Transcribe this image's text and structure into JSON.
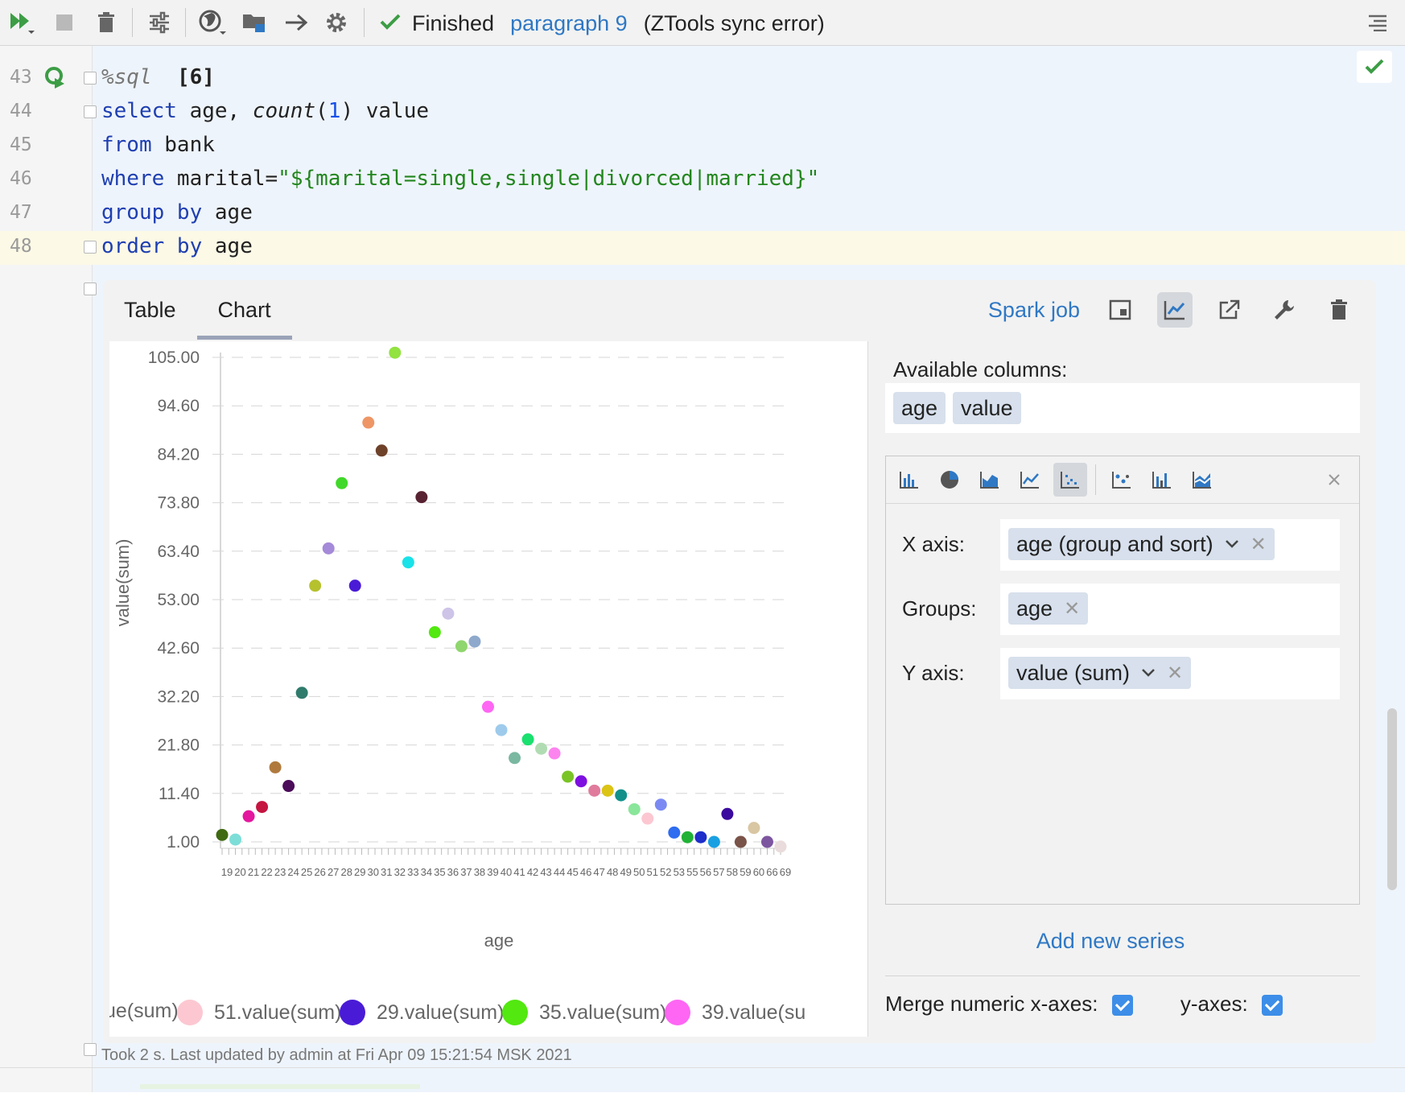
{
  "toolbar": {
    "status": "Finished",
    "paragraph": "paragraph 9",
    "error": "(ZTools sync error)"
  },
  "code": {
    "lines": [
      {
        "num": "43"
      },
      {
        "num": "44"
      },
      {
        "num": "45"
      },
      {
        "num": "46"
      },
      {
        "num": "47"
      },
      {
        "num": "48"
      }
    ],
    "l43_magic": "%sql",
    "l43_count": "[6]",
    "l44_select": "select",
    "l44_age": " age, ",
    "l44_count": "count",
    "l44_p1": "(",
    "l44_one": "1",
    "l44_p2": ") value",
    "l45_from": "from",
    "l45_rest": " bank",
    "l46_where": "where",
    "l46_mid": " marital=",
    "l46_str": "\"${marital=single,single|divorced|married}\"",
    "l47_kw": "group by",
    "l47_rest": " age",
    "l48_kw": "order by",
    "l48_rest": " age"
  },
  "result": {
    "tabs": {
      "table": "Table",
      "chart": "Chart"
    },
    "spark_job": "Spark job"
  },
  "chart_data": {
    "type": "scatter",
    "xlabel": "age",
    "ylabel": "value(sum)",
    "ylim": [
      1.0,
      105.0
    ],
    "yticks": [
      "105.00",
      "94.60",
      "84.20",
      "73.80",
      "63.40",
      "53.00",
      "42.60",
      "32.20",
      "21.80",
      "11.40",
      "1.00"
    ],
    "x": [
      19,
      20,
      21,
      22,
      23,
      24,
      25,
      26,
      27,
      28,
      29,
      30,
      31,
      32,
      33,
      34,
      35,
      36,
      37,
      38,
      39,
      40,
      41,
      42,
      43,
      44,
      45,
      46,
      47,
      48,
      49,
      50,
      51,
      52,
      53,
      55,
      56,
      57,
      58,
      59,
      60,
      66,
      69
    ],
    "x_tick_labels": [
      "19",
      "20",
      "21",
      "22",
      "23",
      "24",
      "25",
      "26",
      "27",
      "28",
      "29",
      "30",
      "31",
      "32",
      "33",
      "34",
      "35",
      "36",
      "37",
      "38",
      "39",
      "40",
      "41",
      "42",
      "43",
      "44",
      "45",
      "46",
      "47",
      "48",
      "49",
      "50",
      "51",
      "52",
      "53",
      "55",
      "56",
      "57",
      "58",
      "59",
      "60",
      "66",
      "69"
    ],
    "y": [
      2.5,
      1.5,
      6.5,
      8.5,
      17,
      13,
      33,
      56,
      64,
      78,
      56,
      91,
      85,
      106,
      61,
      75,
      46,
      50,
      43,
      44,
      30,
      25,
      19,
      23,
      21,
      20,
      15,
      14,
      12,
      12,
      11,
      8,
      6,
      9,
      3,
      2,
      2,
      1,
      7,
      1,
      4,
      1,
      0
    ],
    "colors": [
      "#3f6a12",
      "#7dded8",
      "#e4179f",
      "#c51541",
      "#b07a3e",
      "#4b0c59",
      "#2f7b6c",
      "#b6c12e",
      "#a48ad8",
      "#40d82a",
      "#4a1bd6",
      "#ee9666",
      "#6e4129",
      "#92e240",
      "#19e2e8",
      "#582232",
      "#52e810",
      "#cdc4e8",
      "#8fd66e",
      "#8ea9cc",
      "#fe66f3",
      "#9ecbec",
      "#7ab8a1",
      "#19e06e",
      "#b1dcb3",
      "#fc84ef",
      "#7ac426",
      "#7d10e0",
      "#e07b9c",
      "#dbc416",
      "#11918a",
      "#8ae69a",
      "#fcc7d1",
      "#7b8af3",
      "#2e6cf0",
      "#20b236",
      "#1d2eca",
      "#1aa0e2",
      "#3b0a9e",
      "#7a5349",
      "#d9c6a2",
      "#7d56a0",
      "#eadcdc"
    ],
    "legend": [
      {
        "name": "ue(sum)",
        "color": "#7ab8a1"
      },
      {
        "name": "51.value(sum)",
        "color": "#fcc7d1"
      },
      {
        "name": "29.value(sum)",
        "color": "#4a1bd6"
      },
      {
        "name": "35.value(sum)",
        "color": "#52e810"
      },
      {
        "name": "39.value(su",
        "color": "#fe66f3"
      }
    ],
    "grid": true
  },
  "side": {
    "available_label": "Available columns:",
    "columns": [
      "age",
      "value"
    ],
    "x_axis_label": "X axis:",
    "x_axis_value": "age (group and sort)",
    "groups_label": "Groups:",
    "groups_value": "age",
    "y_axis_label": "Y axis:",
    "y_axis_value": "value (sum)",
    "add_series": "Add new series",
    "merge_label": "Merge numeric x-axes:",
    "y_axes_label": "y-axes:"
  },
  "footer": "Took 2 s. Last updated by admin at Fri Apr 09 15:21:54 MSK 2021"
}
